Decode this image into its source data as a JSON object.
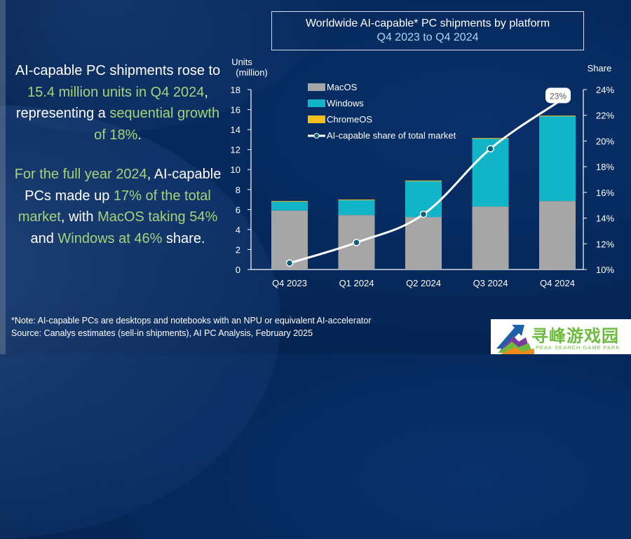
{
  "title": {
    "line1": "Worldwide AI-capable* PC shipments by platform",
    "line2": "Q4 2023 to Q4 2024"
  },
  "summary": {
    "para1": [
      {
        "text": "AI-capable PC shipments rose to ",
        "hl": false
      },
      {
        "text": "15.4 million units in Q4 2024",
        "hl": true
      },
      {
        "text": ", representing a ",
        "hl": false
      },
      {
        "text": "sequential growth of 18%",
        "hl": true
      },
      {
        "text": ".",
        "hl": false
      }
    ],
    "para2": [
      {
        "text": "For the full year 2024",
        "hl": true
      },
      {
        "text": ", AI-capable PCs made up ",
        "hl": false
      },
      {
        "text": "17% of the total market",
        "hl": true
      },
      {
        "text": ", with ",
        "hl": false
      },
      {
        "text": "MacOS taking 54%",
        "hl": true
      },
      {
        "text": " and ",
        "hl": false
      },
      {
        "text": "Windows at 46%",
        "hl": true
      },
      {
        "text": " share.",
        "hl": false
      }
    ]
  },
  "footnote": {
    "note": "*Note: AI-capable PCs are desktops and notebooks with an NPU or equivalent AI-accelerator",
    "source": "Source: Canalys estimates (sell-in shipments), AI PC Analysis, February 2025"
  },
  "watermark": {
    "cn": "寻峰游戏园",
    "en": "PEAK SEARCH GAME PARK"
  },
  "chart_data": {
    "type": "bar",
    "stacked": true,
    "title": "Worldwide AI-capable* PC shipments by platform Q4 2023 to Q4 2024",
    "ylabel": "Units (million)",
    "ylabel_lines": [
      "Units",
      "(million)"
    ],
    "y2label": "Share",
    "categories": [
      "Q4 2023",
      "Q1 2024",
      "Q2 2024",
      "Q3 2024",
      "Q4 2024"
    ],
    "ylim": [
      0,
      18
    ],
    "yticks": [
      0,
      2,
      4,
      6,
      8,
      10,
      12,
      14,
      16,
      18
    ],
    "y2lim": [
      10,
      24
    ],
    "y2ticks": [
      "10%",
      "12%",
      "14%",
      "16%",
      "18%",
      "20%",
      "22%",
      "24%"
    ],
    "y2tick_values": [
      10,
      12,
      14,
      16,
      18,
      20,
      22,
      24
    ],
    "series": [
      {
        "name": "MacOS",
        "color": "#a6a6a6",
        "values": [
          5.9,
          5.45,
          5.25,
          6.3,
          6.85
        ]
      },
      {
        "name": "Windows",
        "color": "#12b4c8",
        "values": [
          0.9,
          1.5,
          3.6,
          6.8,
          8.5
        ]
      },
      {
        "name": "ChromeOS",
        "color": "#f2c01e",
        "values": [
          0.05,
          0.05,
          0.05,
          0.05,
          0.05
        ]
      }
    ],
    "line_series": {
      "name": "AI-capable share of total market",
      "axis": "right",
      "color": "#ffffff",
      "marker_color": "#0b5f7a",
      "values": [
        10.5,
        12.1,
        14.3,
        19.4,
        23.0
      ]
    },
    "annotations": [
      {
        "category": "Q4 2024",
        "text": "23%"
      }
    ],
    "legend_position": "top-left",
    "grid": false
  }
}
